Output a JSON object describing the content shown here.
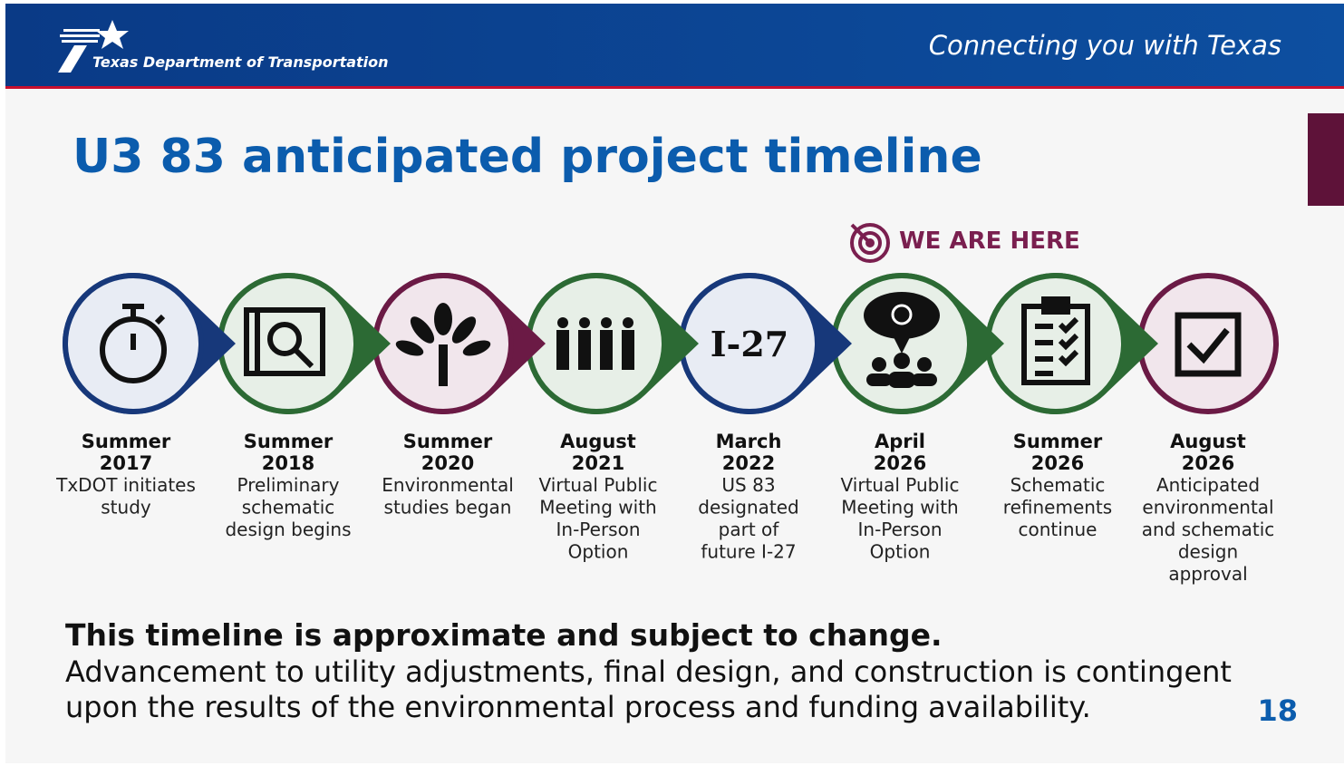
{
  "header": {
    "agency": "Texas Department of Transportation",
    "tagline": "Connecting you with Texas"
  },
  "title": "U3 83 anticipated project timeline",
  "marker": "WE ARE HERE",
  "milestones": [
    {
      "period": "Summer",
      "year": "2017",
      "description": [
        "TxDOT initiates",
        "study"
      ]
    },
    {
      "period": "Summer",
      "year": "2018",
      "description": [
        "Preliminary",
        "schematic",
        "design begins"
      ]
    },
    {
      "period": "Summer",
      "year": "2020",
      "description": [
        "Environmental",
        "studies began"
      ]
    },
    {
      "period": "August",
      "year": "2021",
      "description": [
        "Virtual Public",
        "Meeting with",
        "In-Person",
        "Option"
      ]
    },
    {
      "period": "March",
      "year": "2022",
      "icon_text": "I-27",
      "description": [
        "US 83",
        "designated",
        "part of",
        "future I-27"
      ]
    },
    {
      "period": "April",
      "year": "2026",
      "description": [
        "Virtual Public",
        "Meeting with",
        "In-Person",
        "Option"
      ]
    },
    {
      "period": "Summer",
      "year": "2026",
      "description": [
        "Schematic",
        "refinements",
        "continue"
      ]
    },
    {
      "period": "August",
      "year": "2026",
      "description": [
        "Anticipated",
        "environmental",
        "and schematic",
        "design",
        "approval"
      ]
    }
  ],
  "footer": {
    "note": "This timeline is approximate and subject to change.",
    "body": [
      "Advancement to utility adjustments, final design, and construction is contingent",
      "upon the results of the environmental process and funding availability."
    ],
    "page": "18"
  }
}
